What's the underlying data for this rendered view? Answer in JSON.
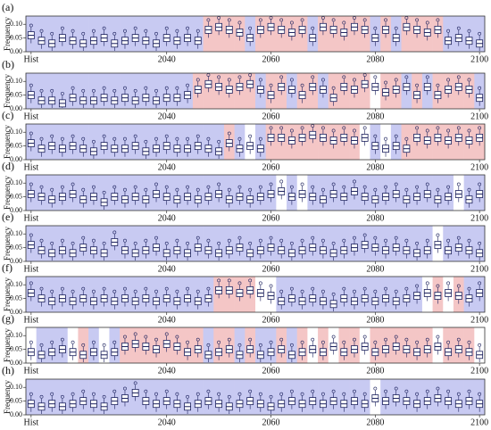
{
  "palette": {
    "r": "#f4c6c6",
    "b": "#c8caf2",
    "w": "#ffffff"
  },
  "chart_data": [
    {
      "type": "box",
      "label": "(a)",
      "ylabel": "Frequency",
      "ylim": [
        0,
        0.13
      ],
      "yticks": [
        {
          "value": 0,
          "label": "0.00"
        },
        {
          "value": 0.05,
          "label": "0.05"
        },
        {
          "value": 0.1,
          "label": "0.10"
        }
      ],
      "categories": [
        "Hist",
        null,
        null,
        null,
        null,
        null,
        null,
        null,
        null,
        null,
        null,
        null,
        null,
        "2040",
        null,
        null,
        null,
        null,
        null,
        null,
        null,
        null,
        null,
        "2060",
        null,
        null,
        null,
        null,
        null,
        null,
        null,
        null,
        null,
        "2080",
        null,
        null,
        null,
        null,
        null,
        null,
        null,
        null,
        null,
        "2100"
      ],
      "background": "bbbbbbbbbbbbbbbbbrrrrbrrrrrbrrrrrbrbrrrrbbbb",
      "values": [
        0.06,
        0.04,
        0.03,
        0.05,
        0.04,
        0.03,
        0.04,
        0.05,
        0.03,
        0.04,
        0.05,
        0.04,
        0.03,
        0.05,
        0.04,
        0.05,
        0.04,
        0.08,
        0.09,
        0.08,
        0.07,
        0.05,
        0.08,
        0.09,
        0.08,
        0.07,
        0.08,
        0.05,
        0.09,
        0.08,
        0.07,
        0.09,
        0.08,
        0.05,
        0.08,
        0.05,
        0.09,
        0.08,
        0.07,
        0.08,
        0.04,
        0.05,
        0.04,
        0.03
      ]
    },
    {
      "type": "box",
      "label": "(b)",
      "ylabel": "Frequency",
      "ylim": [
        0,
        0.13
      ],
      "yticks": [
        {
          "value": 0,
          "label": "0.00"
        },
        {
          "value": 0.05,
          "label": "0.05"
        },
        {
          "value": 0.1,
          "label": "0.10"
        }
      ],
      "categories": [
        "Hist",
        null,
        null,
        null,
        null,
        null,
        null,
        null,
        null,
        null,
        null,
        null,
        null,
        "2040",
        null,
        null,
        null,
        null,
        null,
        null,
        null,
        null,
        null,
        "2060",
        null,
        null,
        null,
        null,
        null,
        null,
        null,
        null,
        null,
        "2080",
        null,
        null,
        null,
        null,
        null,
        null,
        null,
        null,
        null,
        "2100"
      ],
      "background": "bbbbbbbbbbbbbbbbrrrrrrbrrbrrbrrrrwrrbrbrrrrb",
      "values": [
        0.05,
        0.03,
        0.03,
        0.02,
        0.04,
        0.03,
        0.03,
        0.04,
        0.03,
        0.04,
        0.03,
        0.04,
        0.03,
        0.04,
        0.04,
        0.05,
        0.07,
        0.09,
        0.08,
        0.07,
        0.08,
        0.09,
        0.07,
        0.05,
        0.08,
        0.07,
        0.05,
        0.08,
        0.07,
        0.04,
        0.08,
        0.07,
        0.09,
        0.08,
        0.06,
        0.07,
        0.08,
        0.05,
        0.08,
        0.05,
        0.07,
        0.08,
        0.07,
        0.04
      ]
    },
    {
      "type": "box",
      "label": "(c)",
      "ylabel": "Frequency",
      "ylim": [
        0,
        0.13
      ],
      "yticks": [
        {
          "value": 0,
          "label": "0.00"
        },
        {
          "value": 0.05,
          "label": "0.05"
        },
        {
          "value": 0.1,
          "label": "0.10"
        }
      ],
      "categories": [
        "Hist",
        null,
        null,
        null,
        null,
        null,
        null,
        null,
        null,
        null,
        null,
        null,
        null,
        "2040",
        null,
        null,
        null,
        null,
        null,
        null,
        null,
        null,
        null,
        "2060",
        null,
        null,
        null,
        null,
        null,
        null,
        null,
        null,
        null,
        "2080",
        null,
        null,
        null,
        null,
        null,
        null,
        null,
        null,
        null,
        "2100"
      ],
      "background": "bbbbbbbbbbbbbbbbbbbrbwbrrrrrrrrrwbwbrrrrrrrr",
      "values": [
        0.06,
        0.04,
        0.05,
        0.04,
        0.05,
        0.04,
        0.03,
        0.05,
        0.04,
        0.04,
        0.05,
        0.03,
        0.04,
        0.05,
        0.04,
        0.04,
        0.05,
        0.04,
        0.03,
        0.06,
        0.04,
        0.05,
        0.04,
        0.08,
        0.08,
        0.07,
        0.08,
        0.09,
        0.08,
        0.07,
        0.08,
        0.07,
        0.08,
        0.05,
        0.04,
        0.05,
        0.04,
        0.08,
        0.07,
        0.08,
        0.07,
        0.08,
        0.07,
        0.08
      ]
    },
    {
      "type": "box",
      "label": "(d)",
      "ylabel": "Frequency",
      "ylim": [
        0,
        0.13
      ],
      "yticks": [
        {
          "value": 0,
          "label": "0.00"
        },
        {
          "value": 0.05,
          "label": "0.05"
        },
        {
          "value": 0.1,
          "label": "0.10"
        }
      ],
      "categories": [
        "Hist",
        null,
        null,
        null,
        null,
        null,
        null,
        null,
        null,
        null,
        null,
        null,
        null,
        "2040",
        null,
        null,
        null,
        null,
        null,
        null,
        null,
        null,
        null,
        "2060",
        null,
        null,
        null,
        null,
        null,
        null,
        null,
        null,
        null,
        "2080",
        null,
        null,
        null,
        null,
        null,
        null,
        null,
        null,
        null,
        "2100"
      ],
      "background": "bbbbbbbbbbbbbbbbbbbbbbbbwbwbbbbbbbbbbbbbbwbb",
      "values": [
        0.06,
        0.05,
        0.04,
        0.05,
        0.06,
        0.04,
        0.05,
        0.03,
        0.05,
        0.04,
        0.05,
        0.04,
        0.06,
        0.05,
        0.04,
        0.05,
        0.04,
        0.05,
        0.06,
        0.04,
        0.05,
        0.04,
        0.05,
        0.06,
        0.07,
        0.05,
        0.06,
        0.05,
        0.04,
        0.06,
        0.05,
        0.07,
        0.05,
        0.04,
        0.05,
        0.06,
        0.04,
        0.05,
        0.06,
        0.04,
        0.05,
        0.06,
        0.04,
        0.06
      ]
    },
    {
      "type": "box",
      "label": "(e)",
      "ylabel": "Frequency",
      "ylim": [
        0,
        0.13
      ],
      "yticks": [
        {
          "value": 0,
          "label": "0.00"
        },
        {
          "value": 0.05,
          "label": "0.05"
        },
        {
          "value": 0.1,
          "label": "0.10"
        }
      ],
      "categories": [
        "Hist",
        null,
        null,
        null,
        null,
        null,
        null,
        null,
        null,
        null,
        null,
        null,
        null,
        "2040",
        null,
        null,
        null,
        null,
        null,
        null,
        null,
        null,
        null,
        "2060",
        null,
        null,
        null,
        null,
        null,
        null,
        null,
        null,
        null,
        "2080",
        null,
        null,
        null,
        null,
        null,
        null,
        null,
        null,
        null,
        "2100"
      ],
      "background": "bbbbbbbbbbbbbbbbbbbbbbbbbbbbbbbbbbbbbbbwbbbb",
      "values": [
        0.06,
        0.04,
        0.03,
        0.04,
        0.03,
        0.05,
        0.04,
        0.03,
        0.07,
        0.04,
        0.03,
        0.04,
        0.05,
        0.03,
        0.04,
        0.03,
        0.05,
        0.04,
        0.03,
        0.04,
        0.05,
        0.03,
        0.04,
        0.05,
        0.04,
        0.03,
        0.04,
        0.05,
        0.04,
        0.03,
        0.04,
        0.05,
        0.06,
        0.05,
        0.04,
        0.05,
        0.04,
        0.03,
        0.04,
        0.06,
        0.04,
        0.05,
        0.04,
        0.03
      ]
    },
    {
      "type": "box",
      "label": "(f)",
      "ylabel": "Frequency",
      "ylim": [
        0,
        0.13
      ],
      "yticks": [
        {
          "value": 0,
          "label": "0.00"
        },
        {
          "value": 0.05,
          "label": "0.05"
        },
        {
          "value": 0.1,
          "label": "0.10"
        }
      ],
      "categories": [
        "Hist",
        null,
        null,
        null,
        null,
        null,
        null,
        null,
        null,
        null,
        null,
        null,
        null,
        "2040",
        null,
        null,
        null,
        null,
        null,
        null,
        null,
        null,
        null,
        "2060",
        null,
        null,
        null,
        null,
        null,
        null,
        null,
        null,
        null,
        "2080",
        null,
        null,
        null,
        null,
        null,
        null,
        null,
        null,
        null,
        "2100"
      ],
      "background": "bbbbbbbbbbbbbbbbbbrrrrwwbbbbbbbbbbbbbbwrwrbb",
      "values": [
        0.07,
        0.05,
        0.04,
        0.05,
        0.04,
        0.05,
        0.04,
        0.05,
        0.04,
        0.05,
        0.04,
        0.05,
        0.04,
        0.05,
        0.04,
        0.05,
        0.04,
        0.05,
        0.08,
        0.08,
        0.07,
        0.08,
        0.07,
        0.06,
        0.04,
        0.05,
        0.04,
        0.05,
        0.04,
        0.03,
        0.05,
        0.04,
        0.05,
        0.04,
        0.05,
        0.04,
        0.05,
        0.06,
        0.07,
        0.06,
        0.07,
        0.06,
        0.05,
        0.07
      ]
    },
    {
      "type": "box",
      "label": "(g)",
      "ylabel": "Frequency",
      "ylim": [
        0,
        0.13
      ],
      "yticks": [
        {
          "value": 0,
          "label": "0.00"
        },
        {
          "value": 0.05,
          "label": "0.05"
        },
        {
          "value": 0.1,
          "label": "0.10"
        }
      ],
      "categories": [
        "Hist",
        null,
        null,
        null,
        null,
        null,
        null,
        null,
        null,
        null,
        null,
        null,
        null,
        "2040",
        null,
        null,
        null,
        null,
        null,
        null,
        null,
        null,
        null,
        "2060",
        null,
        null,
        null,
        null,
        null,
        null,
        null,
        null,
        null,
        "2080",
        null,
        null,
        null,
        null,
        null,
        null,
        null,
        null,
        null,
        "2100"
      ],
      "background": "wbbbwrbwbrrrrrrrrbrrbrbbrbrwrwrrwrrrrrrwrrrw",
      "values": [
        0.04,
        0.03,
        0.04,
        0.05,
        0.04,
        0.03,
        0.04,
        0.03,
        0.04,
        0.06,
        0.07,
        0.06,
        0.05,
        0.07,
        0.06,
        0.04,
        0.05,
        0.03,
        0.04,
        0.05,
        0.03,
        0.05,
        0.03,
        0.04,
        0.05,
        0.03,
        0.04,
        0.05,
        0.04,
        0.06,
        0.04,
        0.05,
        0.06,
        0.04,
        0.05,
        0.06,
        0.05,
        0.04,
        0.05,
        0.06,
        0.04,
        0.05,
        0.04,
        0.03
      ]
    },
    {
      "type": "box",
      "label": "(h)",
      "ylabel": "Frequency",
      "ylim": [
        0,
        0.13
      ],
      "yticks": [
        {
          "value": 0,
          "label": "0.00"
        },
        {
          "value": 0.05,
          "label": "0.05"
        },
        {
          "value": 0.1,
          "label": "0.10"
        }
      ],
      "categories": [
        "Hist",
        null,
        null,
        null,
        null,
        null,
        null,
        null,
        null,
        null,
        null,
        null,
        null,
        "2040",
        null,
        null,
        null,
        null,
        null,
        null,
        null,
        null,
        null,
        "2060",
        null,
        null,
        null,
        null,
        null,
        null,
        null,
        null,
        null,
        "2080",
        null,
        null,
        null,
        null,
        null,
        null,
        null,
        null,
        null,
        "2100"
      ],
      "background": "bbbbbbbbbbbbbbbbbbbbbbbbbbbbbbbbbwbbbbbbbbbb",
      "values": [
        0.04,
        0.03,
        0.04,
        0.03,
        0.04,
        0.05,
        0.04,
        0.03,
        0.05,
        0.06,
        0.08,
        0.05,
        0.04,
        0.05,
        0.04,
        0.03,
        0.04,
        0.05,
        0.04,
        0.03,
        0.04,
        0.05,
        0.04,
        0.03,
        0.04,
        0.05,
        0.04,
        0.05,
        0.04,
        0.05,
        0.04,
        0.05,
        0.04,
        0.06,
        0.05,
        0.06,
        0.05,
        0.04,
        0.05,
        0.06,
        0.05,
        0.04,
        0.05,
        0.04
      ]
    }
  ]
}
